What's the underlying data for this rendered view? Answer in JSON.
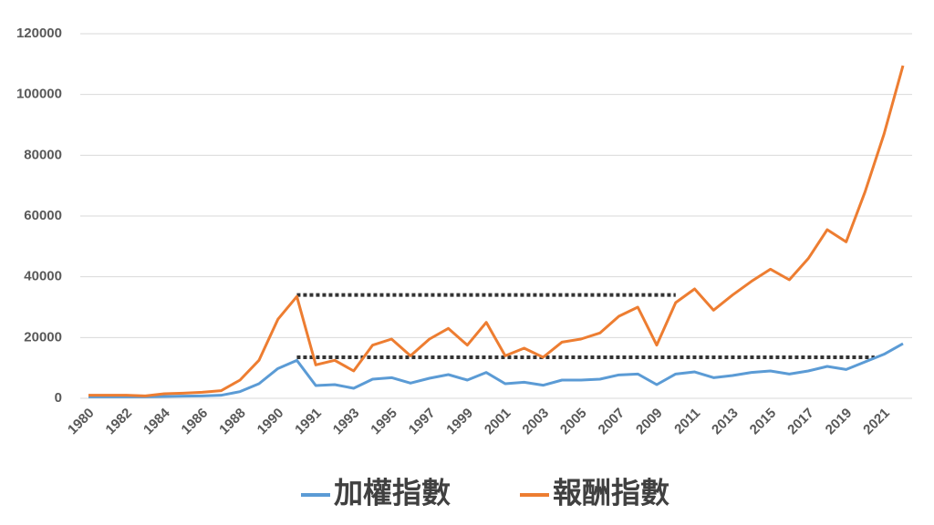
{
  "chart_data": {
    "type": "line",
    "categories": [
      "1980",
      null,
      "1982",
      null,
      "1984",
      null,
      "1986",
      null,
      "1988",
      null,
      "1990",
      null,
      "1991",
      null,
      "1993",
      null,
      "1995",
      null,
      "1997",
      null,
      "1999",
      null,
      "2001",
      null,
      "2003",
      null,
      "2005",
      null,
      "2007",
      null,
      "2009",
      null,
      "2011",
      null,
      "2013",
      null,
      "2015",
      null,
      "2017",
      null,
      "2019",
      null,
      "2021",
      null
    ],
    "series": [
      {
        "name": "加權指數",
        "color": "#5b9bd5",
        "values": [
          500,
          500,
          500,
          500,
          600,
          700,
          800,
          1000,
          2200,
          4800,
          9800,
          12500,
          4200,
          4500,
          3300,
          6300,
          6800,
          5000,
          6600,
          7800,
          6000,
          8500,
          4800,
          5300,
          4300,
          6000,
          6000,
          6300,
          7700,
          8000,
          4500,
          8000,
          8700,
          6800,
          7500,
          8500,
          9000,
          8000,
          9000,
          10500,
          9500,
          12000,
          14500,
          18000
        ]
      },
      {
        "name": "報酬指數",
        "color": "#ed7d31",
        "values": [
          1000,
          1000,
          1000,
          800,
          1500,
          1700,
          2000,
          2500,
          6000,
          12500,
          26000,
          33500,
          11000,
          12500,
          9000,
          17500,
          19500,
          14000,
          19500,
          23000,
          17500,
          25000,
          14000,
          16500,
          13500,
          18500,
          19500,
          21500,
          27000,
          30000,
          17500,
          31500,
          36000,
          29000,
          34000,
          38500,
          42500,
          39000,
          46000,
          55500,
          51500,
          68000,
          87000,
          109500
        ]
      }
    ],
    "annotations": [
      {
        "value": 34000,
        "from": 11,
        "to": 31,
        "color": "#333333"
      },
      {
        "value": 13500,
        "from": 11,
        "to": 41.5,
        "color": "#333333"
      }
    ],
    "ylim": [
      0,
      120000
    ],
    "yticks": [
      0,
      20000,
      40000,
      60000,
      80000,
      100000,
      120000
    ],
    "grid": true,
    "legend": "bottom"
  }
}
